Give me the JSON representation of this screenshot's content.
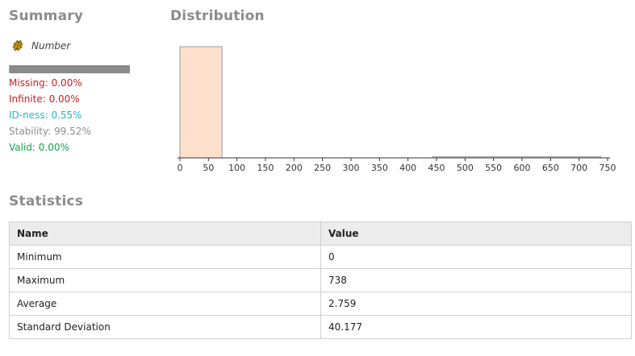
{
  "summary": {
    "title": "Summary",
    "type_icon": "hash-icon",
    "type_icon_glyph": "#",
    "type_label": "Number",
    "quality": {
      "id_ness_fraction": 0.0055,
      "bar_color": "#8a8a8a",
      "id_color": "#4fc5d3"
    },
    "missing": "Missing: 0.00%",
    "infinite": "Infinite: 0.00%",
    "id_ness": "ID-ness: 0.55%",
    "stability": "Stability: 99.52%",
    "valid": "Valid: 0.00%"
  },
  "distribution": {
    "title": "Distribution"
  },
  "chart_data": {
    "type": "bar",
    "bins": [
      {
        "from": 0,
        "to": 73.8,
        "count": 1.0
      },
      {
        "from": 442.8,
        "to": 738,
        "count": 0.01
      }
    ],
    "xlim": [
      0,
      750
    ],
    "xticks": [
      "0",
      "50",
      "100",
      "150",
      "200",
      "250",
      "300",
      "350",
      "400",
      "450",
      "500",
      "550",
      "600",
      "650",
      "700",
      "750"
    ],
    "bar_fill": "#ffe0cc",
    "bar_stroke": "#9a9a9a"
  },
  "statistics": {
    "title": "Statistics",
    "columns": [
      "Name",
      "Value"
    ],
    "rows": [
      [
        "Minimum",
        "0"
      ],
      [
        "Maximum",
        "738"
      ],
      [
        "Average",
        "2.759"
      ],
      [
        "Standard Deviation",
        "40.177"
      ]
    ]
  }
}
